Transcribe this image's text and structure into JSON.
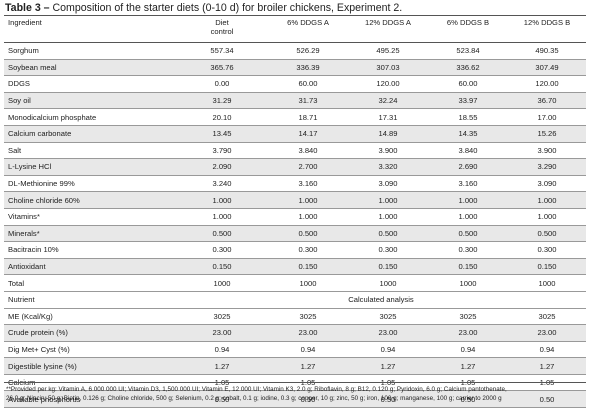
{
  "caption": {
    "label": "Table 3 –",
    "text": " Composition of the starter diets (0-10 d) for broiler chickens, Experiment 2."
  },
  "header": {
    "ingredient": "Ingredient",
    "diet_line1": "Diet",
    "diet_line2": "control",
    "col2": "6% DDGS A",
    "col3": "12% DDGS A",
    "col4": "6% DDGS B",
    "col5": "12% DDGS B"
  },
  "ingredients": [
    {
      "name": "Sorghum",
      "values": [
        "557.34",
        "526.29",
        "495.25",
        "523.84",
        "490.35"
      ]
    },
    {
      "name": "Soybean meal",
      "values": [
        "365.76",
        "336.39",
        "307.03",
        "336.62",
        "307.49"
      ]
    },
    {
      "name": "DDGS",
      "values": [
        "0.00",
        "60.00",
        "120.00",
        "60.00",
        "120.00"
      ]
    },
    {
      "name": "Soy oil",
      "values": [
        "31.29",
        "31.73",
        "32.24",
        "33.97",
        "36.70"
      ]
    },
    {
      "name": "Monodicalcium phosphate",
      "values": [
        "20.10",
        "18.71",
        "17.31",
        "18.55",
        "17.00"
      ]
    },
    {
      "name": "Calcium carbonate",
      "values": [
        "13.45",
        "14.17",
        "14.89",
        "14.35",
        "15.26"
      ]
    },
    {
      "name": "Salt",
      "values": [
        "3.790",
        "3.840",
        "3.900",
        "3.840",
        "3.900"
      ]
    },
    {
      "name": "L-Lysine HCl",
      "values": [
        "2.090",
        "2.700",
        "3.320",
        "2.690",
        "3.290"
      ]
    },
    {
      "name": "DL-Methionine 99%",
      "values": [
        "3.240",
        "3.160",
        "3.090",
        "3.160",
        "3.090"
      ]
    },
    {
      "name": "Choline chloride 60%",
      "values": [
        "1.000",
        "1.000",
        "1.000",
        "1.000",
        "1.000"
      ]
    },
    {
      "name": "Vitamins*",
      "values": [
        "1.000",
        "1.000",
        "1.000",
        "1.000",
        "1.000"
      ]
    },
    {
      "name": "Minerals*",
      "values": [
        "0.500",
        "0.500",
        "0.500",
        "0.500",
        "0.500"
      ]
    },
    {
      "name": "Bacitracin 10%",
      "values": [
        "0.300",
        "0.300",
        "0.300",
        "0.300",
        "0.300"
      ]
    },
    {
      "name": "Antioxidant",
      "values": [
        "0.150",
        "0.150",
        "0.150",
        "0.150",
        "0.150"
      ]
    },
    {
      "name": "Total",
      "values": [
        "1000",
        "1000",
        "1000",
        "1000",
        "1000"
      ]
    }
  ],
  "section": {
    "nutrient": "Nutrient",
    "calculated": "Calculated analysis"
  },
  "nutrients": [
    {
      "name": "ME (Kcal/Kg)",
      "values": [
        "3025",
        "3025",
        "3025",
        "3025",
        "3025"
      ]
    },
    {
      "name": "Crude protein (%)",
      "values": [
        "23.00",
        "23.00",
        "23.00",
        "23.00",
        "23.00"
      ]
    },
    {
      "name": "Dig Met+ Cyst (%)",
      "values": [
        "0.94",
        "0.94",
        "0.94",
        "0.94",
        "0.94"
      ]
    },
    {
      "name": "Digestible lysine (%)",
      "values": [
        "1.27",
        "1.27",
        "1.27",
        "1.27",
        "1.27"
      ]
    },
    {
      "name": "Calcium",
      "values": [
        "1.05",
        "1.05",
        "1.05",
        "1.05",
        "1.05"
      ]
    },
    {
      "name": "Available phosphorus",
      "values": [
        "0.50",
        "0.50",
        "0.50",
        "0.50",
        "0.50"
      ]
    }
  ],
  "footnote": {
    "line1": "**Provided per kg: Vitamin A, 6 000 000 UI; Vitamin D3, 1,500 000 UI; Vitamin E, 12 000 UI; Vitamin K3, 2.0 g; Riboflavin, 8 g; B12, 0.120 g; Pyridoxin, 6.0 g; Calcium pantothenate,",
    "line2": "26.0 g; Niacin, 50 g; Biotin, 0.126 g; Choline chloride, 500 g; Selenium, 0.2 g; cobalt, 0.1 g; iodine, 0.3 g; copper, 10 g; zinc, 50 g; iron, 100 g; manganese, 100 g; carrier to 2000 g"
  }
}
